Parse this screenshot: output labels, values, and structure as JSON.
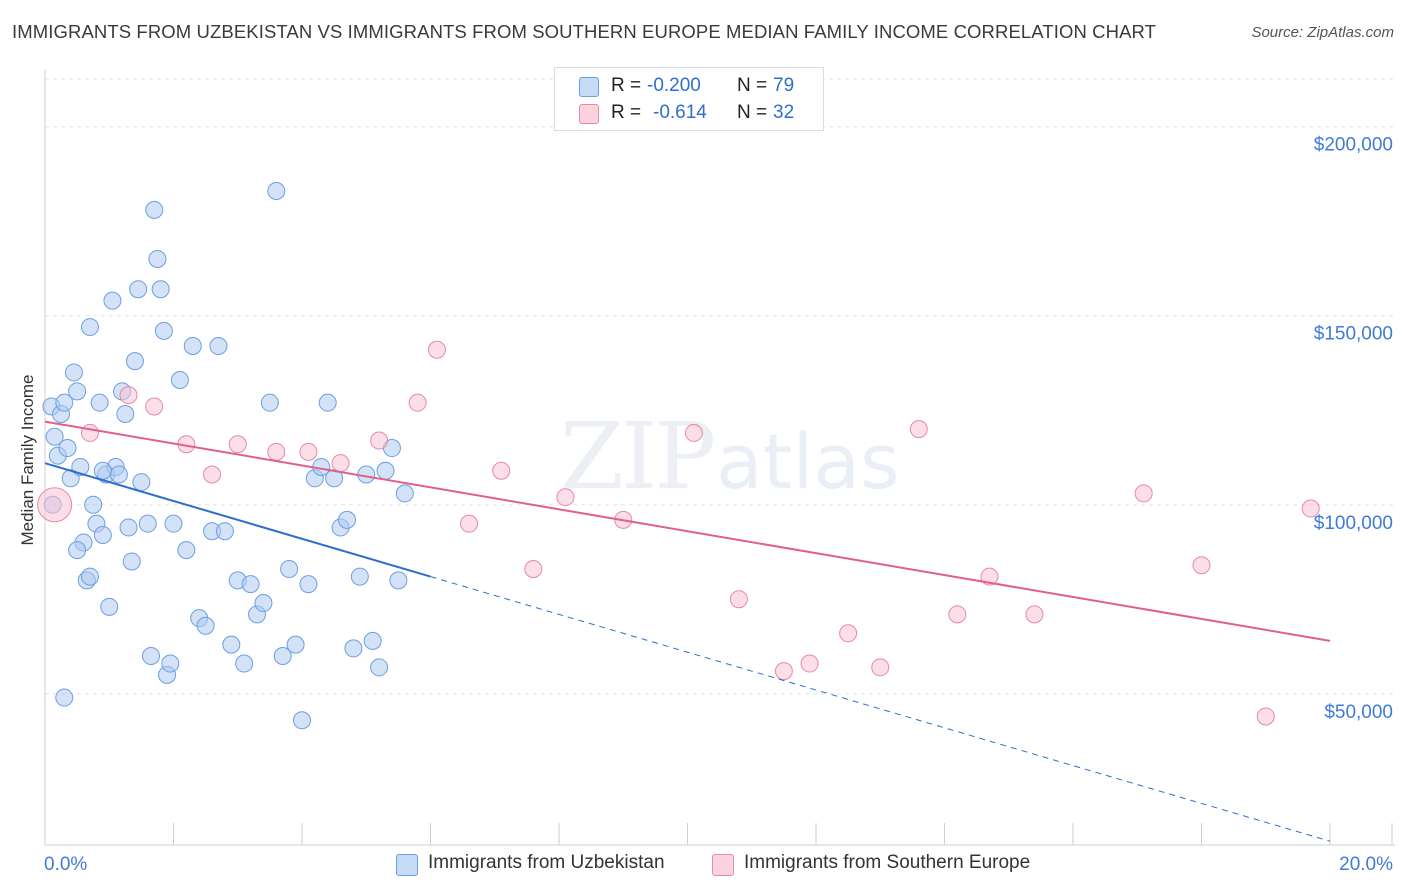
{
  "title": "IMMIGRANTS FROM UZBEKISTAN VS IMMIGRANTS FROM SOUTHERN EUROPE MEDIAN FAMILY INCOME CORRELATION CHART",
  "source": "Source: ZipAtlas.com",
  "legend": {
    "rows": [
      {
        "r_label": "R =",
        "r_value": "-0.200",
        "n_label": "N =",
        "n_value": "79"
      },
      {
        "r_label": "R =",
        "r_value": "-0.614",
        "n_label": "N =",
        "n_value": "32"
      }
    ]
  },
  "colors": {
    "blue_fill": "#aecbf0",
    "blue_stroke": "#6d9fe0",
    "blue_line": "#2e6fcc",
    "pink_fill": "#f8c3d3",
    "pink_stroke": "#e58aa8",
    "pink_line": "#e0608a",
    "axis_text": "#3f7bd6"
  },
  "chart_data": {
    "type": "scatter",
    "title": "IMMIGRANTS FROM UZBEKISTAN VS IMMIGRANTS FROM SOUTHERN EUROPE MEDIAN FAMILY INCOME CORRELATION CHART",
    "ylabel": "Median Family Income",
    "xlabel": "",
    "xlim": [
      0,
      20
    ],
    "ylim": [
      10000,
      215000
    ],
    "x_tick_labels": [
      "0.0%",
      "20.0%"
    ],
    "y_ticks": [
      50000,
      100000,
      150000,
      200000
    ],
    "y_tick_labels": [
      "$50,000",
      "$100,000",
      "$150,000",
      "$200,000"
    ],
    "grid": "horizontal dashed",
    "legend_position": "top-center",
    "series": [
      {
        "name": "Immigrants from Uzbekistan",
        "color": "#6d9fe0",
        "x": [
          0.1,
          0.15,
          0.12,
          0.2,
          0.25,
          0.3,
          0.35,
          0.4,
          0.45,
          0.5,
          0.55,
          0.6,
          0.65,
          0.7,
          0.75,
          0.8,
          0.85,
          0.9,
          0.95,
          1.0,
          1.05,
          1.1,
          1.15,
          1.2,
          1.25,
          1.3,
          1.35,
          1.4,
          1.45,
          1.5,
          1.6,
          1.65,
          1.7,
          1.75,
          1.8,
          1.85,
          1.9,
          1.95,
          2.0,
          2.1,
          2.2,
          2.3,
          2.4,
          2.5,
          2.6,
          2.7,
          2.8,
          2.9,
          3.0,
          3.1,
          3.2,
          3.3,
          3.4,
          3.5,
          3.6,
          3.7,
          3.8,
          3.9,
          4.0,
          4.1,
          4.2,
          4.3,
          4.4,
          4.5,
          4.6,
          4.7,
          4.8,
          4.9,
          5.0,
          5.1,
          5.2,
          5.3,
          5.4,
          5.5,
          5.6,
          0.3,
          0.5,
          0.7,
          0.9
        ],
        "y": [
          126000,
          118000,
          100000,
          113000,
          124000,
          127000,
          115000,
          107000,
          135000,
          130000,
          110000,
          90000,
          80000,
          147000,
          100000,
          95000,
          127000,
          92000,
          108000,
          73000,
          154000,
          110000,
          108000,
          130000,
          124000,
          94000,
          85000,
          138000,
          157000,
          106000,
          95000,
          60000,
          178000,
          165000,
          157000,
          146000,
          55000,
          58000,
          95000,
          133000,
          88000,
          142000,
          70000,
          68000,
          93000,
          142000,
          93000,
          63000,
          80000,
          58000,
          79000,
          71000,
          74000,
          127000,
          183000,
          60000,
          83000,
          63000,
          43000,
          79000,
          107000,
          110000,
          127000,
          107000,
          94000,
          96000,
          62000,
          81000,
          108000,
          64000,
          57000,
          109000,
          115000,
          80000,
          103000,
          49000,
          88000,
          81000,
          109000
        ]
      },
      {
        "name": "Immigrants from Southern Europe",
        "color": "#e58aa8",
        "x": [
          0.15,
          0.7,
          1.3,
          1.7,
          2.2,
          2.6,
          3.0,
          3.6,
          4.1,
          4.6,
          5.2,
          5.8,
          6.1,
          6.6,
          7.1,
          7.6,
          8.1,
          9.0,
          10.1,
          10.8,
          11.5,
          11.9,
          12.5,
          13.0,
          13.6,
          14.2,
          14.7,
          15.4,
          17.1,
          18.0,
          19.0,
          19.7
        ],
        "y": [
          100000,
          119000,
          129000,
          126000,
          116000,
          108000,
          116000,
          114000,
          114000,
          111000,
          117000,
          127000,
          141000,
          95000,
          109000,
          83000,
          102000,
          96000,
          119000,
          75000,
          56000,
          58000,
          66000,
          57000,
          120000,
          71000,
          81000,
          71000,
          103000,
          84000,
          44000,
          99000
        ]
      }
    ],
    "trend_lines": [
      {
        "series": "Immigrants from Uzbekistan",
        "x": [
          0,
          6
        ],
        "y": [
          111000,
          81000
        ],
        "dashed_extension_to": [
          20,
          11000
        ]
      },
      {
        "series": "Immigrants from Southern Europe",
        "x": [
          0,
          20
        ],
        "y": [
          122000,
          64000
        ]
      }
    ],
    "watermark": "ZIPatlas"
  }
}
